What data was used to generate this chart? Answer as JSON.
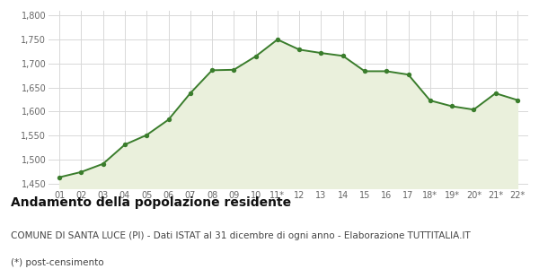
{
  "x_labels": [
    "01",
    "02",
    "03",
    "04",
    "05",
    "06",
    "07",
    "08",
    "09",
    "10",
    "11*",
    "12",
    "13",
    "14",
    "15",
    "16",
    "17",
    "18*",
    "19*",
    "20*",
    "21*",
    "22*"
  ],
  "y_values": [
    1463,
    1474,
    1491,
    1531,
    1551,
    1583,
    1638,
    1686,
    1687,
    1715,
    1750,
    1729,
    1722,
    1716,
    1684,
    1684,
    1677,
    1623,
    1611,
    1604,
    1638,
    1624
  ],
  "y_ticks": [
    1450,
    1500,
    1550,
    1600,
    1650,
    1700,
    1750,
    1800
  ],
  "y_tick_labels": [
    "1,450",
    "1,500",
    "1,550",
    "1,600",
    "1,650",
    "1,700",
    "1,750",
    "1,800"
  ],
  "ylim": [
    1440,
    1810
  ],
  "line_color": "#3a7d2c",
  "fill_color": "#eaf0dc",
  "marker_color": "#3a7d2c",
  "bg_color": "#ffffff",
  "grid_color": "#d8d8d8",
  "title": "Andamento della popolazione residente",
  "subtitle": "COMUNE DI SANTA LUCE (PI) - Dati ISTAT al 31 dicembre di ogni anno - Elaborazione TUTTITALIA.IT",
  "footnote": "(*) post-censimento",
  "title_fontsize": 10,
  "subtitle_fontsize": 7.5,
  "footnote_fontsize": 7.5,
  "tick_fontsize": 7
}
